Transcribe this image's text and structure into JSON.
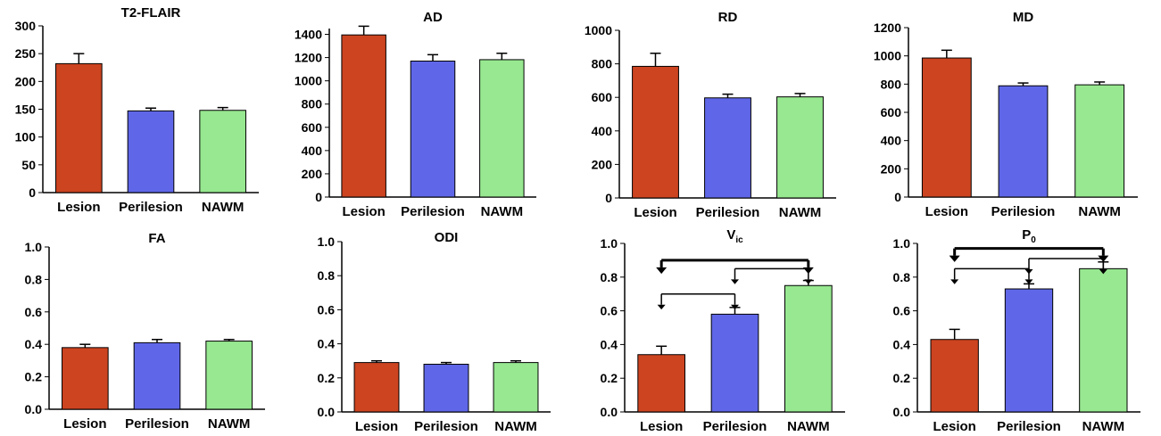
{
  "colors": {
    "Lesion": "#cc4420",
    "Perilesion": "#5f67e8",
    "NAWM": "#97e890",
    "error_bar": "#000000",
    "axis": "#000000"
  },
  "chart_data": [
    {
      "type": "bar",
      "title": "T2-FLAIR",
      "title_sub": "",
      "categories": [
        "Lesion",
        "Perilesion",
        "NAWM"
      ],
      "values": [
        232,
        147,
        148
      ],
      "errors": [
        18,
        5,
        5
      ],
      "ylim": [
        0,
        300
      ],
      "yticks": [
        0,
        50,
        100,
        150,
        200,
        250,
        300
      ],
      "xlabel": "",
      "ylabel": "",
      "grid": false,
      "significance": []
    },
    {
      "type": "bar",
      "title": "AD",
      "title_sub": "",
      "categories": [
        "Lesion",
        "Perilesion",
        "NAWM"
      ],
      "values": [
        1395,
        1170,
        1182
      ],
      "errors": [
        75,
        55,
        55
      ],
      "ylim": [
        0,
        1450
      ],
      "yticks": [
        0,
        200,
        400,
        600,
        800,
        1000,
        1200,
        1400
      ],
      "xlabel": "",
      "ylabel": "",
      "grid": false,
      "significance": []
    },
    {
      "type": "bar",
      "title": "RD",
      "title_sub": "",
      "categories": [
        "Lesion",
        "Perilesion",
        "NAWM"
      ],
      "values": [
        785,
        597,
        603
      ],
      "errors": [
        78,
        22,
        20
      ],
      "ylim": [
        0,
        1000
      ],
      "yticks": [
        0,
        200,
        400,
        600,
        800,
        1000
      ],
      "xlabel": "",
      "ylabel": "",
      "grid": false,
      "significance": []
    },
    {
      "type": "bar",
      "title": "MD",
      "title_sub": "",
      "categories": [
        "Lesion",
        "Perilesion",
        "NAWM"
      ],
      "values": [
        985,
        788,
        795
      ],
      "errors": [
        55,
        20,
        20
      ],
      "ylim": [
        0,
        1200
      ],
      "yticks": [
        0,
        200,
        400,
        600,
        800,
        1000,
        1200
      ],
      "xlabel": "",
      "ylabel": "",
      "grid": false,
      "significance": []
    },
    {
      "type": "bar",
      "title": "FA",
      "title_sub": "",
      "categories": [
        "Lesion",
        "Perilesion",
        "NAWM"
      ],
      "values": [
        0.38,
        0.41,
        0.42
      ],
      "errors": [
        0.02,
        0.02,
        0.01
      ],
      "ylim": [
        0,
        1.0
      ],
      "yticks": [
        "0.0",
        "0.2",
        "0.4",
        "0.6",
        "0.8",
        "1.0"
      ],
      "xlabel": "",
      "ylabel": "",
      "grid": false,
      "significance": []
    },
    {
      "type": "bar",
      "title": "ODI",
      "title_sub": "",
      "categories": [
        "Lesion",
        "Perilesion",
        "NAWM"
      ],
      "values": [
        0.29,
        0.28,
        0.29
      ],
      "errors": [
        0.01,
        0.01,
        0.01
      ],
      "ylim": [
        0,
        1.0
      ],
      "yticks": [
        "0.0",
        "0.2",
        "0.4",
        "0.6",
        "0.8",
        "1.0"
      ],
      "xlabel": "",
      "ylabel": "",
      "grid": false,
      "significance": []
    },
    {
      "type": "bar",
      "title": "V",
      "title_sub": "ic",
      "categories": [
        "Lesion",
        "Perilesion",
        "NAWM"
      ],
      "values": [
        0.34,
        0.58,
        0.75
      ],
      "errors": [
        0.05,
        0.04,
        0.03
      ],
      "ylim": [
        0,
        1.0
      ],
      "yticks": [
        "0.0",
        "0.2",
        "0.4",
        "0.6",
        "0.8",
        "1.0"
      ],
      "xlabel": "",
      "ylabel": "",
      "grid": false,
      "significance": [
        {
          "from": 0,
          "to": 2,
          "level": 0.9,
          "emphasis": "thick"
        },
        {
          "from": 0,
          "to": 1,
          "level": 0.7,
          "emphasis": "thin"
        },
        {
          "from": 1,
          "to": 2,
          "level": 0.85,
          "emphasis": "thin"
        }
      ]
    },
    {
      "type": "bar",
      "title": "P",
      "title_sub": "0",
      "categories": [
        "Lesion",
        "Perilesion",
        "NAWM"
      ],
      "values": [
        0.43,
        0.73,
        0.85
      ],
      "errors": [
        0.06,
        0.03,
        0.04
      ],
      "ylim": [
        0,
        1.0
      ],
      "yticks": [
        "0.0",
        "0.2",
        "0.4",
        "0.6",
        "0.8",
        "1.0"
      ],
      "xlabel": "",
      "ylabel": "",
      "grid": false,
      "significance": [
        {
          "from": 0,
          "to": 2,
          "level": 0.97,
          "emphasis": "thick"
        },
        {
          "from": 0,
          "to": 1,
          "level": 0.85,
          "emphasis": "thin"
        },
        {
          "from": 1,
          "to": 2,
          "level": 0.91,
          "emphasis": "thin"
        }
      ]
    }
  ]
}
